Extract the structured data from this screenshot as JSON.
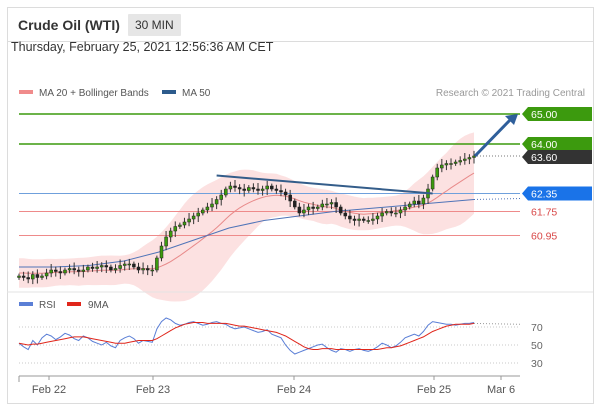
{
  "header": {
    "instrument": "Crude Oil (WTI)",
    "timeframe": "30 MIN"
  },
  "datetime": "Thursday, February 25, 2021 12:56:36 AM CET",
  "legend": {
    "items": [
      {
        "label": "MA 20 + Bollinger Bands",
        "color": "#f08b8b"
      },
      {
        "label": "MA 50",
        "color": "#2d5b8c"
      }
    ],
    "attribution": "Research © 2021 Trading Central"
  },
  "chart_data": [
    {
      "type": "candlestick",
      "x_ticks": [
        "Feb 22",
        "Feb 23",
        "Feb 24",
        "Feb 25",
        "Mar 6"
      ],
      "ylim": [
        59.3,
        65.3
      ],
      "levels": [
        {
          "value": 65.0,
          "label": "65.00",
          "style": "target",
          "color": "#3c9a0e"
        },
        {
          "value": 64.0,
          "label": "64.00",
          "style": "target",
          "color": "#3c9a0e"
        },
        {
          "value": 63.6,
          "label": "63.60",
          "style": "last-price",
          "color": "#333333"
        },
        {
          "value": 62.35,
          "label": "62.35",
          "style": "pivot",
          "color": "#1a73e8"
        },
        {
          "value": 61.75,
          "label": "61.75",
          "style": "support",
          "color": "#e05050"
        },
        {
          "value": 60.95,
          "label": "60.95",
          "style": "support",
          "color": "#e05050"
        }
      ],
      "arrow_target": 65.0,
      "candle_closes": [
        59.6,
        59.55,
        59.5,
        59.65,
        59.55,
        59.6,
        59.7,
        59.8,
        59.75,
        59.7,
        59.8,
        59.85,
        59.8,
        59.75,
        59.8,
        59.9,
        59.85,
        59.9,
        59.95,
        59.9,
        59.8,
        59.85,
        59.95,
        60.0,
        60.0,
        59.9,
        59.8,
        59.85,
        59.8,
        59.8,
        60.2,
        60.6,
        60.9,
        61.1,
        61.25,
        61.3,
        61.4,
        61.5,
        61.6,
        61.7,
        61.8,
        61.9,
        62.0,
        62.15,
        62.3,
        62.5,
        62.6,
        62.55,
        62.5,
        62.45,
        62.55,
        62.5,
        62.45,
        62.5,
        62.6,
        62.5,
        62.45,
        62.4,
        62.3,
        62.1,
        61.9,
        61.7,
        61.8,
        61.9,
        61.85,
        61.9,
        62.0,
        62.0,
        62.05,
        61.9,
        61.7,
        61.6,
        61.5,
        61.45,
        61.5,
        61.45,
        61.45,
        61.5,
        61.6,
        61.7,
        61.75,
        61.7,
        61.7,
        61.8,
        61.9,
        62.0,
        62.1,
        62.0,
        62.2,
        62.5,
        62.9,
        63.2,
        63.3,
        63.35,
        63.35,
        63.4,
        63.45,
        63.5,
        63.55,
        63.6
      ],
      "ma20": [
        59.7,
        59.7,
        59.69,
        59.69,
        59.69,
        59.69,
        59.7,
        59.71,
        59.72,
        59.73,
        59.73,
        59.74,
        59.74,
        59.74,
        59.75,
        59.76,
        59.77,
        59.78,
        59.79,
        59.79,
        59.79,
        59.79,
        59.8,
        59.82,
        59.83,
        59.84,
        59.84,
        59.84,
        59.84,
        59.84,
        59.87,
        59.93,
        60.0,
        60.08,
        60.18,
        60.28,
        60.39,
        60.5,
        60.61,
        60.72,
        60.84,
        60.96,
        61.08,
        61.21,
        61.35,
        61.5,
        61.64,
        61.76,
        61.87,
        61.96,
        62.04,
        62.11,
        62.17,
        62.22,
        62.26,
        62.28,
        62.29,
        62.28,
        62.26,
        62.22,
        62.17,
        62.11,
        62.06,
        62.02,
        61.99,
        61.95,
        61.92,
        61.9,
        61.89,
        61.85,
        61.8,
        61.76,
        61.72,
        61.69,
        61.67,
        61.66,
        61.67,
        61.68,
        61.7,
        61.72,
        61.74,
        61.76,
        61.78,
        61.8,
        61.83,
        61.86,
        61.9,
        61.92,
        61.96,
        62.03,
        62.12,
        62.22,
        62.33,
        62.43,
        62.54,
        62.64,
        62.74,
        62.84,
        62.94,
        63.03
      ],
      "ma50_trend": [
        59.9,
        59.9,
        59.95,
        60.1,
        60.4,
        60.8,
        61.2,
        61.45,
        61.6,
        61.75,
        61.85,
        61.95,
        62.05,
        62.15
      ],
      "rsi": {
        "series": [
          {
            "name": "RSI",
            "color": "#5b7fd6",
            "values": [
              52,
              48,
              45,
              55,
              50,
              58,
              62,
              60,
              56,
              59,
              63,
              61,
              57,
              55,
              60,
              58,
              54,
              52,
              50,
              53,
              49,
              47,
              55,
              58,
              60,
              57,
              52,
              55,
              54,
              53,
              68,
              76,
              80,
              78,
              74,
              72,
              73,
              75,
              76,
              74,
              72,
              73,
              75,
              76,
              74,
              73,
              70,
              68,
              69,
              70,
              68,
              66,
              64,
              65,
              67,
              62,
              60,
              58,
              50,
              44,
              40,
              42,
              44,
              46,
              48,
              50,
              51,
              47,
              44,
              42,
              46,
              45,
              43,
              45,
              46,
              44,
              43,
              45,
              48,
              52,
              50,
              47,
              49,
              53,
              58,
              60,
              62,
              60,
              65,
              72,
              76,
              75,
              74,
              73,
              73,
              72,
              73,
              74,
              74,
              75
            ]
          },
          {
            "name": "9MA",
            "color": "#e0261b",
            "values": [
              52,
              51,
              50,
              51,
              51,
              52,
              53,
              54,
              55,
              56,
              57,
              58,
              59,
              59,
              59,
              58,
              57,
              56,
              55,
              54,
              53,
              52,
              52,
              52,
              53,
              54,
              55,
              55,
              55,
              55,
              57,
              60,
              63,
              66,
              69,
              71,
              73,
              74,
              75,
              75,
              75,
              74,
              74,
              74,
              74,
              74,
              73,
              72,
              71,
              71,
              70,
              69,
              68,
              67,
              66,
              65,
              64,
              62,
              60,
              57,
              54,
              51,
              48,
              46,
              45,
              45,
              46,
              46,
              46,
              45,
              45,
              45,
              45,
              45,
              45,
              45,
              45,
              45,
              45,
              46,
              47,
              47,
              48,
              49,
              51,
              53,
              55,
              57,
              59,
              62,
              65,
              67,
              69,
              71,
              72,
              73,
              73,
              73,
              73,
              74
            ]
          }
        ],
        "levels": [
          70,
          50,
          30
        ]
      }
    }
  ]
}
